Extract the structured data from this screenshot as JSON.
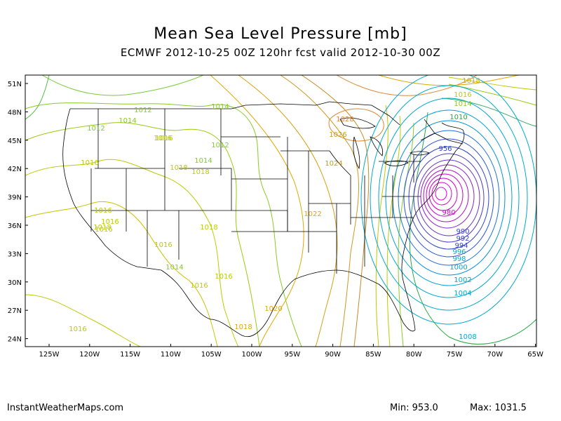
{
  "header": {
    "title": "Mean Sea Level Pressure [mb]",
    "subtitle": "ECMWF 2012-10-25 00Z 120hr fcst valid 2012-10-30 00Z"
  },
  "map": {
    "lat_labels": [
      "51N",
      "48N",
      "45N",
      "42N",
      "39N",
      "36N",
      "33N",
      "30N",
      "27N",
      "24N"
    ],
    "lon_labels": [
      "125W",
      "120W",
      "115W",
      "110W",
      "105W",
      "100W",
      "95W",
      "90W",
      "85W",
      "80W",
      "75W",
      "70W",
      "65W"
    ],
    "colors": {
      "isobar_1008": "#22aa44",
      "isobar_1012": "#88cc22",
      "isobar_1016": "#bbcc00",
      "isobar_1020": "#ddaa00",
      "isobar_1024": "#cc9922",
      "isobar_1028": "#dd8833",
      "isobar_high_ring": "#cc7722",
      "isobar_996": "#00aacc",
      "isobar_low_inner": "#3344cc",
      "isobar_low_core": "#cc00cc",
      "borders": "#000000"
    },
    "contour_labels": [
      {
        "text": "1018",
        "col": "isobar_1020"
      },
      {
        "text": "1016",
        "col": "isobar_1016"
      },
      {
        "text": "1014",
        "col": "isobar_1012"
      },
      {
        "text": "1014",
        "col": "isobar_1012"
      },
      {
        "text": "1012",
        "col": "isobar_1012"
      },
      {
        "text": "1012",
        "col": "isobar_1012"
      },
      {
        "text": "1014",
        "col": "isobar_1012"
      },
      {
        "text": "1016",
        "col": "isobar_1016"
      },
      {
        "text": "1012",
        "col": "isobar_1012"
      },
      {
        "text": "1014",
        "col": "isobar_1012"
      },
      {
        "text": "1016",
        "col": "isobar_1016"
      },
      {
        "text": "1018",
        "col": "isobar_1016"
      },
      {
        "text": "1018",
        "col": "isobar_1016"
      },
      {
        "text": "1016",
        "col": "isobar_1016"
      },
      {
        "text": "1028",
        "col": "isobar_1028"
      },
      {
        "text": "1026",
        "col": "isobar_1024"
      },
      {
        "text": "1024",
        "col": "isobar_1024"
      },
      {
        "text": "1022",
        "col": "isobar_1020"
      },
      {
        "text": "1016",
        "col": "isobar_1016"
      },
      {
        "text": "1016",
        "col": "isobar_1016"
      },
      {
        "text": "1018",
        "col": "isobar_1016"
      },
      {
        "text": "1018",
        "col": "isobar_1016"
      },
      {
        "text": "1016",
        "col": "isobar_1016"
      },
      {
        "text": "1016",
        "col": "isobar_1016"
      },
      {
        "text": "1014",
        "col": "isobar_1012"
      },
      {
        "text": "1016",
        "col": "isobar_1016"
      },
      {
        "text": "1016",
        "col": "isobar_1016"
      },
      {
        "text": "1020",
        "col": "isobar_1020"
      },
      {
        "text": "1018",
        "col": "isobar_1020"
      },
      {
        "text": "1016",
        "col": "isobar_1016"
      },
      {
        "text": "1010",
        "col": "isobar_1008"
      },
      {
        "text": "980",
        "col": "isobar_low_core"
      },
      {
        "text": "990",
        "col": "isobar_low_inner"
      },
      {
        "text": "992",
        "col": "isobar_low_inner"
      },
      {
        "text": "994",
        "col": "isobar_low_inner"
      },
      {
        "text": "996",
        "col": "isobar_996"
      },
      {
        "text": "998",
        "col": "isobar_996"
      },
      {
        "text": "1000",
        "col": "isobar_996"
      },
      {
        "text": "1002",
        "col": "isobar_996"
      },
      {
        "text": "1004",
        "col": "isobar_996"
      },
      {
        "text": "1008",
        "col": "isobar_996"
      },
      {
        "text": "956",
        "col": "isobar_low_inner"
      }
    ]
  },
  "footer": {
    "credit": "InstantWeatherMaps.com",
    "min": "Min:  953.0",
    "max": "Max: 1031.5"
  }
}
